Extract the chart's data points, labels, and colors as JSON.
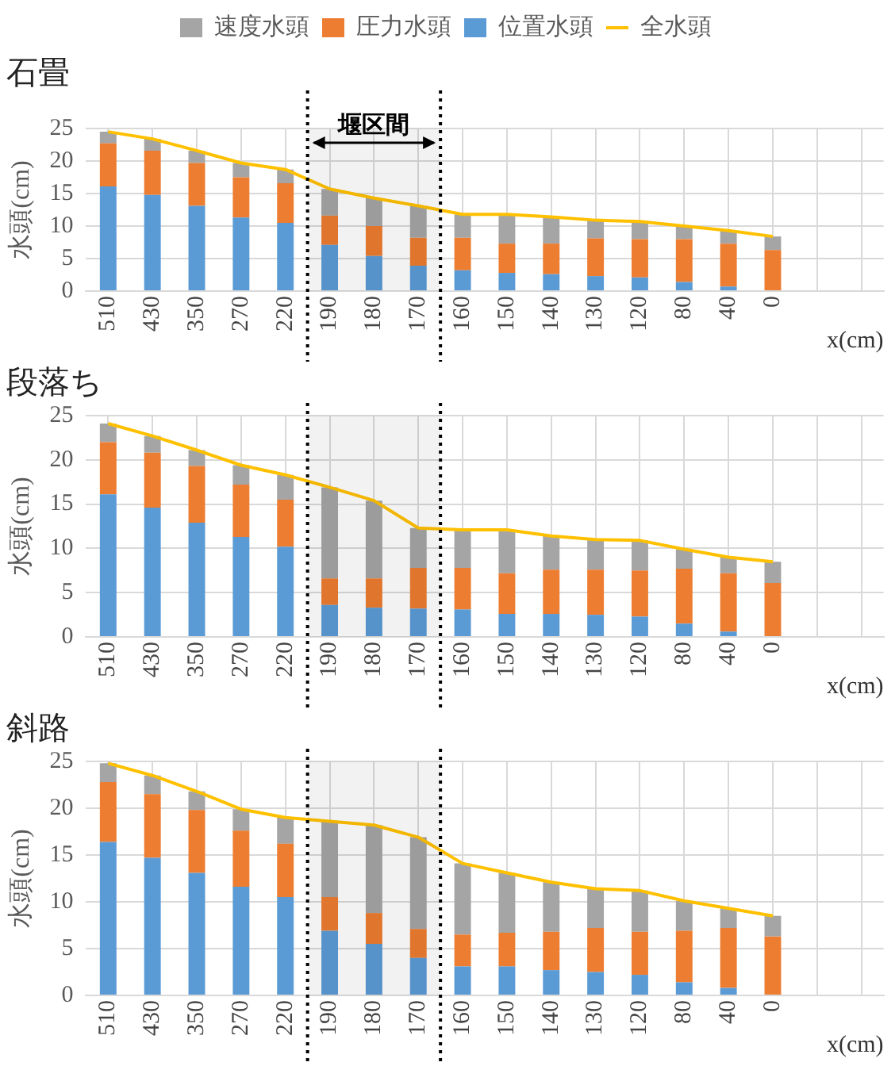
{
  "chart_data": [
    {
      "type": "bar",
      "stacked": true,
      "title": "石畳",
      "ylabel": "水頭(cm)",
      "xlabel": "x(cm)",
      "legend": "top",
      "grid": true,
      "marker": "none",
      "categories": [
        "510",
        "430",
        "350",
        "270",
        "220",
        "190",
        "180",
        "170",
        "160",
        "150",
        "140",
        "130",
        "120",
        "80",
        "40",
        "0",
        null,
        null
      ],
      "ylim": [
        0,
        25
      ],
      "yticks": [
        0,
        5,
        10,
        15,
        20,
        25
      ],
      "bands": [
        {
          "axis": "x",
          "from": "190",
          "to": "170",
          "label": "堰区間",
          "color": "#000000"
        }
      ],
      "series": [
        {
          "name": "位置水頭",
          "color": "#5b9bd5",
          "values": [
            16.1,
            14.8,
            13.1,
            11.3,
            10.5,
            7.1,
            5.4,
            3.9,
            3.2,
            2.8,
            2.6,
            2.3,
            2.1,
            1.4,
            0.7,
            0,
            null,
            null
          ]
        },
        {
          "name": "圧力水頭",
          "color": "#ed7d31",
          "values": [
            6.6,
            6.8,
            6.6,
            6.2,
            6.1,
            4.5,
            4.6,
            4.3,
            5.0,
            4.5,
            4.7,
            5.8,
            5.9,
            6.6,
            6.6,
            6.3,
            null,
            null
          ]
        },
        {
          "name": "速度水頭",
          "color": "#a5a5a5",
          "values": [
            1.8,
            1.8,
            1.9,
            2.2,
            2.1,
            4.1,
            4.3,
            4.9,
            3.6,
            4.5,
            4.1,
            2.8,
            2.7,
            2.0,
            2.0,
            2.1,
            null,
            null
          ]
        },
        {
          "name": "全水頭",
          "type": "line",
          "color": "#ffc000",
          "values": [
            24.5,
            23.4,
            21.6,
            19.7,
            18.7,
            15.7,
            14.3,
            13.1,
            11.8,
            11.8,
            11.4,
            10.9,
            10.7,
            10.0,
            9.3,
            8.4,
            null,
            null
          ]
        }
      ]
    },
    {
      "type": "bar",
      "stacked": true,
      "title": "段落ち",
      "ylabel": "水頭(cm)",
      "xlabel": "x(cm)",
      "grid": true,
      "marker": "none",
      "categories": [
        "510",
        "430",
        "350",
        "270",
        "220",
        "190",
        "180",
        "170",
        "160",
        "150",
        "140",
        "130",
        "120",
        "80",
        "40",
        "0",
        null,
        null
      ],
      "ylim": [
        0,
        25
      ],
      "yticks": [
        0,
        5,
        10,
        15,
        20,
        25
      ],
      "bands": [
        {
          "axis": "x",
          "from": "190",
          "to": "170",
          "color": "#000000"
        }
      ],
      "series": [
        {
          "color": "#5b9bd5",
          "values": [
            16.1,
            14.6,
            12.9,
            11.3,
            10.2,
            3.6,
            3.3,
            3.2,
            3.1,
            2.6,
            2.6,
            2.5,
            2.3,
            1.5,
            0.6,
            0,
            null,
            null
          ]
        },
        {
          "color": "#ed7d31",
          "values": [
            5.9,
            6.2,
            6.4,
            5.9,
            5.3,
            3.0,
            3.3,
            4.6,
            4.7,
            4.6,
            5.0,
            5.1,
            5.2,
            6.2,
            6.6,
            6.1,
            null,
            null
          ]
        },
        {
          "color": "#a5a5a5",
          "values": [
            2.1,
            1.9,
            1.8,
            2.2,
            2.8,
            10.3,
            8.8,
            4.5,
            4.3,
            4.9,
            3.8,
            3.4,
            3.4,
            2.2,
            1.8,
            2.4,
            null,
            null
          ]
        },
        {
          "type": "line",
          "color": "#ffc000",
          "values": [
            24.1,
            22.7,
            21.1,
            19.4,
            18.3,
            16.9,
            15.4,
            12.3,
            12.1,
            12.1,
            11.4,
            11.0,
            10.9,
            9.9,
            9.0,
            8.5,
            null,
            null
          ]
        }
      ]
    },
    {
      "type": "bar",
      "stacked": true,
      "title": "斜路",
      "ylabel": "水頭(cm)",
      "xlabel": "x(cm)",
      "grid": true,
      "marker": "none",
      "categories": [
        "510",
        "430",
        "350",
        "270",
        "220",
        "190",
        "180",
        "170",
        "160",
        "150",
        "140",
        "130",
        "120",
        "80",
        "40",
        "0",
        null,
        null
      ],
      "ylim": [
        0,
        25
      ],
      "yticks": [
        0,
        5,
        10,
        15,
        20,
        25
      ],
      "bands": [
        {
          "axis": "x",
          "from": "190",
          "to": "170",
          "color": "#000000"
        }
      ],
      "series": [
        {
          "color": "#5b9bd5",
          "values": [
            16.4,
            14.7,
            13.1,
            11.6,
            10.5,
            6.9,
            5.5,
            4.0,
            3.1,
            3.1,
            2.7,
            2.5,
            2.2,
            1.4,
            0.8,
            0,
            null,
            null
          ]
        },
        {
          "color": "#ed7d31",
          "values": [
            6.4,
            6.8,
            6.7,
            6.0,
            5.7,
            3.6,
            3.3,
            3.1,
            3.4,
            3.6,
            4.1,
            4.7,
            4.6,
            5.5,
            6.4,
            6.3,
            null,
            null
          ]
        },
        {
          "color": "#a5a5a5",
          "values": [
            2.0,
            2.0,
            2.0,
            2.3,
            2.8,
            8.1,
            9.4,
            9.8,
            7.6,
            6.4,
            5.3,
            4.2,
            4.4,
            3.2,
            2.1,
            2.2,
            null,
            null
          ]
        },
        {
          "type": "line",
          "color": "#ffc000",
          "values": [
            24.8,
            23.5,
            21.8,
            19.9,
            19.0,
            18.6,
            18.2,
            16.9,
            14.1,
            13.1,
            12.1,
            11.4,
            11.2,
            10.1,
            9.3,
            8.5,
            null,
            null
          ]
        }
      ]
    }
  ]
}
